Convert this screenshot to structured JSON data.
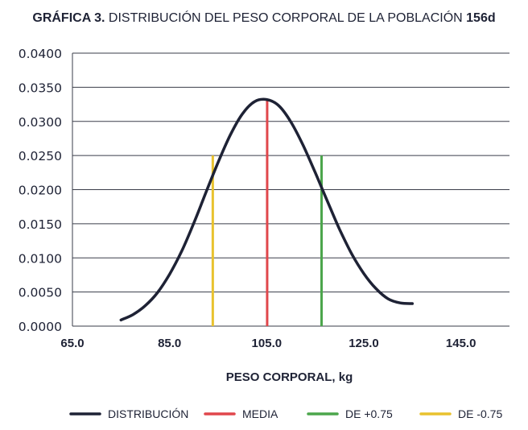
{
  "title": {
    "prefix": "GRÁFICA 3.",
    "main": " DISTRIBUCIÓN DEL PESO CORPORAL DE LA POBLACIÓN ",
    "suffix": "156d"
  },
  "chart_data": {
    "type": "line",
    "xlabel": "PESO CORPORAL, kg",
    "ylabel": "",
    "xlim": [
      65,
      155
    ],
    "ylim": [
      0,
      0.04
    ],
    "x_ticks": [
      65,
      85,
      105,
      125,
      145
    ],
    "x_tick_labels": [
      "65.0",
      "85.0",
      "105.0",
      "125.0",
      "145.0"
    ],
    "y_ticks": [
      0,
      0.005,
      0.01,
      0.015,
      0.02,
      0.025,
      0.03,
      0.035,
      0.04
    ],
    "y_tick_labels": [
      "0.0000",
      "0.0050",
      "0.0100",
      "0.0150",
      "0.0200",
      "0.0250",
      "0.0300",
      "0.0350",
      "0.0400"
    ],
    "grid": "horizontal",
    "legend_position": "bottom",
    "distribution": {
      "name": "DISTRIBUCIÓN",
      "color": "#1e2235",
      "x": [
        75.0,
        77.5,
        80.0,
        82.5,
        85.0,
        87.5,
        90.0,
        92.5,
        95.0,
        97.5,
        100.0,
        102.5,
        105.0,
        107.5,
        110.0,
        112.5,
        115.0,
        117.5,
        120.0,
        122.5,
        125.0,
        127.5,
        130.0,
        132.5,
        135.0
      ],
      "y": [
        0.0009,
        0.0017,
        0.003,
        0.0049,
        0.0076,
        0.011,
        0.0151,
        0.0196,
        0.024,
        0.028,
        0.0311,
        0.0329,
        0.0332,
        0.0323,
        0.0299,
        0.0265,
        0.0225,
        0.0183,
        0.0142,
        0.0106,
        0.0077,
        0.0055,
        0.004,
        0.0034,
        0.0033
      ]
    },
    "markers": [
      {
        "name": "MEDIA",
        "x": 105.1,
        "y": 0.0332,
        "color": "#e0474c"
      },
      {
        "name": "DE +0.75",
        "x": 116.3,
        "y": 0.025,
        "color": "#4ca64c"
      },
      {
        "name": "DE -0.75",
        "x": 93.9,
        "y": 0.025,
        "color": "#e8c22e"
      }
    ]
  }
}
